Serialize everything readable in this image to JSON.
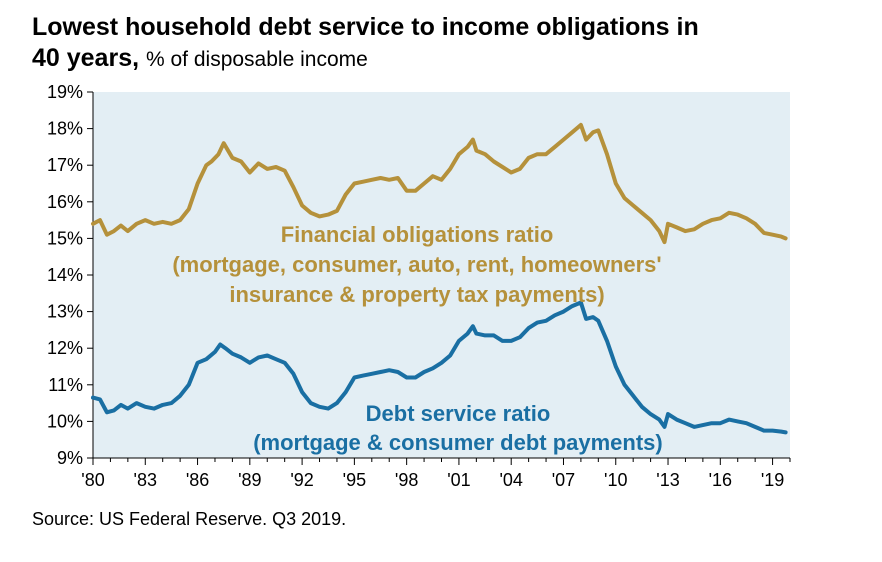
{
  "title_bold_1": "Lowest household debt service to income obligations in",
  "title_bold_2": "40 years,",
  "title_unit": "% of disposable income",
  "source": "Source: US Federal Reserve. Q3 2019.",
  "chart_data": {
    "type": "line",
    "title": "Lowest household debt service to income obligations in 40 years",
    "ylabel": "% of disposable income",
    "xlabel": "",
    "xlim": [
      1980,
      2020
    ],
    "ylim": [
      9,
      19
    ],
    "grid": false,
    "background": "#e3eef4",
    "y_ticks": [
      "9%",
      "10%",
      "11%",
      "12%",
      "13%",
      "14%",
      "15%",
      "16%",
      "17%",
      "18%",
      "19%"
    ],
    "y_tick_values": [
      9,
      10,
      11,
      12,
      13,
      14,
      15,
      16,
      17,
      18,
      19
    ],
    "x_ticks": [
      "'80",
      "'83",
      "'86",
      "'89",
      "'92",
      "'95",
      "'98",
      "'01",
      "'04",
      "'07",
      "'10",
      "'13",
      "'16",
      "'19"
    ],
    "x_tick_values": [
      1980,
      1983,
      1986,
      1989,
      1992,
      1995,
      1998,
      2001,
      2004,
      2007,
      2010,
      2013,
      2016,
      2019
    ],
    "annotations": [
      {
        "lines": [
          "Financial obligations ratio",
          "(mortgage, consumer, auto, rent, homeowners'",
          "insurance & property tax payments)"
        ],
        "color": "#b5913b"
      },
      {
        "lines": [
          "Debt service ratio",
          "(mortgage & consumer debt payments)"
        ],
        "color": "#1a6fa3"
      }
    ],
    "series": [
      {
        "color": "#b5913b",
        "x": [
          1980,
          1980.4,
          1980.8,
          1981.2,
          1981.6,
          1982,
          1982.5,
          1983,
          1983.5,
          1984,
          1984.5,
          1985,
          1985.5,
          1986,
          1986.5,
          1986.8,
          1987.2,
          1987.5,
          1988,
          1988.5,
          1989,
          1989.5,
          1990,
          1990.5,
          1991,
          1991.5,
          1992,
          1992.5,
          1993,
          1993.5,
          1994,
          1994.5,
          1995,
          1995.5,
          1996,
          1996.5,
          1997,
          1997.5,
          1998,
          1998.5,
          1999,
          1999.5,
          2000,
          2000.5,
          2001,
          2001.5,
          2001.8,
          2002,
          2002.5,
          2003,
          2003.5,
          2004,
          2004.5,
          2005,
          2005.5,
          2006,
          2006.5,
          2007,
          2007.5,
          2008,
          2008.3,
          2008.7,
          2009,
          2009.5,
          2010,
          2010.5,
          2011,
          2011.5,
          2012,
          2012.5,
          2012.8,
          2013,
          2013.5,
          2014,
          2014.5,
          2015,
          2015.5,
          2016,
          2016.5,
          2017,
          2017.5,
          2018,
          2018.5,
          2019,
          2019.5,
          2019.75
        ],
        "y": [
          15.4,
          15.5,
          15.1,
          15.2,
          15.35,
          15.2,
          15.4,
          15.5,
          15.4,
          15.45,
          15.4,
          15.5,
          15.8,
          16.5,
          17.0,
          17.1,
          17.3,
          17.6,
          17.2,
          17.1,
          16.8,
          17.05,
          16.9,
          16.95,
          16.85,
          16.4,
          15.9,
          15.7,
          15.6,
          15.65,
          15.75,
          16.2,
          16.5,
          16.55,
          16.6,
          16.65,
          16.6,
          16.65,
          16.3,
          16.3,
          16.5,
          16.7,
          16.6,
          16.9,
          17.3,
          17.5,
          17.7,
          17.4,
          17.3,
          17.1,
          16.95,
          16.8,
          16.9,
          17.2,
          17.3,
          17.3,
          17.5,
          17.7,
          17.9,
          18.1,
          17.7,
          17.9,
          17.95,
          17.3,
          16.5,
          16.1,
          15.9,
          15.7,
          15.5,
          15.2,
          14.9,
          15.4,
          15.3,
          15.2,
          15.25,
          15.4,
          15.5,
          15.55,
          15.7,
          15.65,
          15.55,
          15.4,
          15.15,
          15.1,
          15.05,
          15.0
        ]
      },
      {
        "color": "#1a6fa3",
        "x": [
          1980,
          1980.4,
          1980.8,
          1981.2,
          1981.6,
          1982,
          1982.5,
          1983,
          1983.5,
          1984,
          1984.5,
          1985,
          1985.5,
          1986,
          1986.5,
          1987,
          1987.3,
          1987.6,
          1988,
          1988.5,
          1989,
          1989.5,
          1990,
          1990.5,
          1991,
          1991.5,
          1992,
          1992.5,
          1993,
          1993.5,
          1994,
          1994.5,
          1995,
          1995.5,
          1996,
          1996.5,
          1997,
          1997.5,
          1998,
          1998.5,
          1999,
          1999.5,
          2000,
          2000.5,
          2001,
          2001.5,
          2001.8,
          2002,
          2002.5,
          2003,
          2003.5,
          2004,
          2004.5,
          2005,
          2005.5,
          2006,
          2006.5,
          2007,
          2007.5,
          2008,
          2008.3,
          2008.7,
          2009,
          2009.5,
          2010,
          2010.5,
          2011,
          2011.5,
          2012,
          2012.5,
          2012.8,
          2013,
          2013.5,
          2014,
          2014.5,
          2015,
          2015.5,
          2016,
          2016.5,
          2017,
          2017.5,
          2018,
          2018.5,
          2019,
          2019.5,
          2019.75
        ],
        "y": [
          10.65,
          10.6,
          10.25,
          10.3,
          10.45,
          10.35,
          10.5,
          10.4,
          10.35,
          10.45,
          10.5,
          10.7,
          11.0,
          11.6,
          11.7,
          11.9,
          12.1,
          12.0,
          11.85,
          11.75,
          11.6,
          11.75,
          11.8,
          11.7,
          11.6,
          11.3,
          10.8,
          10.5,
          10.4,
          10.35,
          10.5,
          10.8,
          11.2,
          11.25,
          11.3,
          11.35,
          11.4,
          11.35,
          11.2,
          11.2,
          11.35,
          11.45,
          11.6,
          11.8,
          12.2,
          12.4,
          12.6,
          12.4,
          12.35,
          12.35,
          12.2,
          12.2,
          12.3,
          12.55,
          12.7,
          12.75,
          12.9,
          13.0,
          13.15,
          13.25,
          12.8,
          12.85,
          12.75,
          12.2,
          11.5,
          11.0,
          10.7,
          10.4,
          10.2,
          10.05,
          9.85,
          10.2,
          10.05,
          9.95,
          9.85,
          9.9,
          9.95,
          9.95,
          10.05,
          10.0,
          9.95,
          9.85,
          9.75,
          9.75,
          9.72,
          9.7
        ]
      }
    ]
  }
}
